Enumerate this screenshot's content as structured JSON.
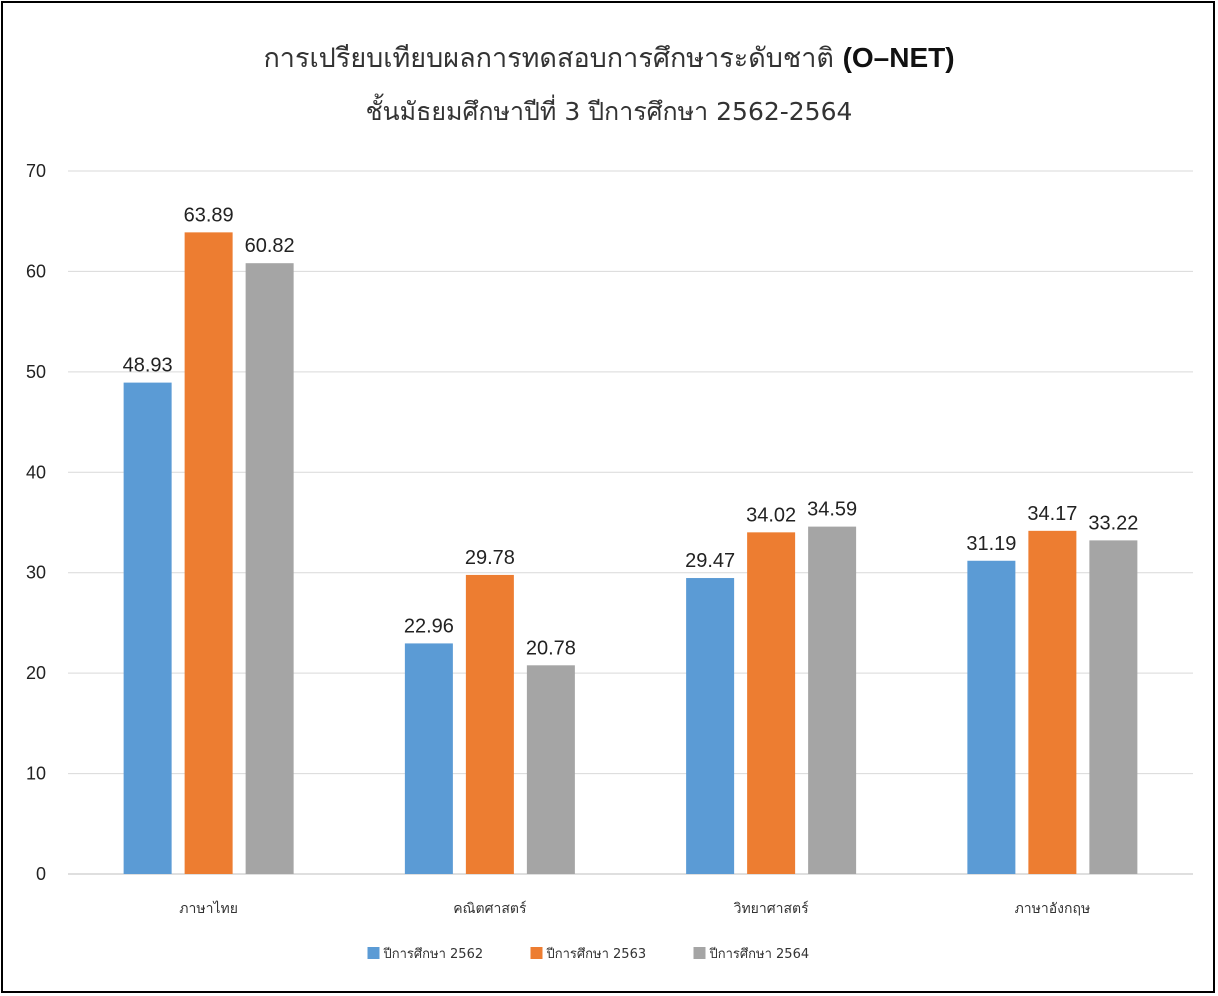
{
  "chart_data": {
    "type": "bar",
    "title": "การเปรียบเทียบผลการทดสอบการศึกษาระดับชาติ",
    "title_acronym": "(O–NET)",
    "subtitle": "ชั้นมัธยมศึกษาปีที่  3   ปีการศึกษา 2562-2564",
    "xlabel": "",
    "ylabel": "",
    "categories": [
      "ภาษาไทย",
      "คณิตศาสตร์",
      "วิทยาศาสตร์",
      "ภาษาอังกฤษ"
    ],
    "series": [
      {
        "name": "ปีการศึกษา 2562",
        "color": "#5b9bd5",
        "values": [
          48.93,
          22.96,
          29.47,
          31.19
        ]
      },
      {
        "name": "ปีการศึกษา 2563",
        "color": "#ed7d31",
        "values": [
          63.89,
          29.78,
          34.02,
          34.17
        ]
      },
      {
        "name": "ปีการศึกษา 2564",
        "color": "#a5a5a5",
        "values": [
          60.82,
          20.78,
          34.59,
          33.22
        ]
      }
    ],
    "ylim": [
      0,
      70
    ],
    "yticks": [
      0,
      10,
      20,
      30,
      40,
      50,
      60,
      70
    ],
    "grid": true,
    "legend_position": "bottom"
  }
}
